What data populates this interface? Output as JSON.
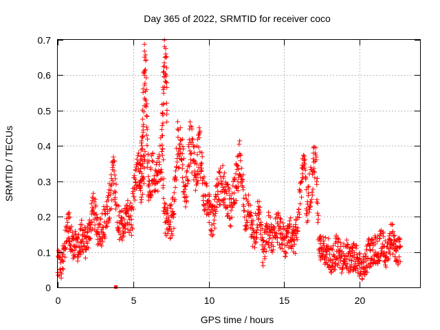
{
  "chart_data": {
    "type": "scatter",
    "title": "Day 365 of 2022, SRMTID for receiver coco",
    "xlabel": "GPS time / hours",
    "ylabel": "SRMTID / TECUs",
    "xlim": [
      0,
      24
    ],
    "ylim": [
      0,
      0.7
    ],
    "xticks": [
      0,
      5,
      10,
      15,
      20
    ],
    "yticks": [
      0,
      0.1,
      0.2,
      0.3,
      0.4,
      0.5,
      0.6,
      0.7
    ],
    "xtick_labels": [
      "0",
      "5",
      "10",
      "15",
      "20"
    ],
    "ytick_labels": [
      "0",
      "0.1",
      "0.2",
      "0.3",
      "0.4",
      "0.5",
      "0.6",
      "0.7"
    ],
    "grid": true,
    "marker": "plus",
    "color": "#ff0000",
    "outlier": {
      "x": 3.85,
      "y": 0.0
    },
    "series": [
      {
        "name": "SRMTID",
        "segments": [
          [
            0.0,
            0.07,
            0.3,
            0.06,
            0.5,
            0.13,
            0.7,
            0.18,
            1.0,
            0.12,
            1.3,
            0.11,
            1.6,
            0.15,
            1.9,
            0.12,
            2.1,
            0.17,
            2.4,
            0.23,
            2.7,
            0.13,
            3.0,
            0.18,
            3.3,
            0.2,
            3.5,
            0.27,
            3.7,
            0.32,
            4.0,
            0.19,
            4.3,
            0.17,
            4.6,
            0.2,
            4.9,
            0.19,
            5.1,
            0.3,
            5.3,
            0.33,
            5.6,
            0.28,
            5.8,
            0.42
          ],
          [
            5.45,
            0.28,
            5.6,
            0.4,
            5.75,
            0.62,
            5.85,
            0.55,
            6.0,
            0.3
          ],
          [
            6.0,
            0.3,
            6.4,
            0.33,
            6.6,
            0.32,
            6.9,
            0.38,
            7.1,
            0.19,
            7.4,
            0.18,
            7.7,
            0.21,
            7.9,
            0.41,
            8.2,
            0.39,
            8.5,
            0.25,
            8.8,
            0.43,
            9.1,
            0.3,
            9.4,
            0.4,
            9.7,
            0.27,
            10.0,
            0.22,
            10.3,
            0.18,
            10.6,
            0.27,
            10.9,
            0.3,
            11.2,
            0.25,
            11.5,
            0.21,
            11.8,
            0.3,
            12.1,
            0.37,
            12.4,
            0.21,
            12.7,
            0.22,
            13.0,
            0.13,
            13.3,
            0.22,
            13.6,
            0.09,
            13.9,
            0.17,
            14.2,
            0.14,
            14.5,
            0.18,
            14.8,
            0.15,
            15.1,
            0.12,
            15.4,
            0.16,
            15.7,
            0.13,
            16.0,
            0.24,
            16.3,
            0.36,
            16.5,
            0.22,
            16.8,
            0.3,
            17.1,
            0.38,
            17.3,
            0.13,
            17.6,
            0.1,
            17.9,
            0.1,
            18.2,
            0.07,
            18.5,
            0.11,
            18.8,
            0.08,
            19.1,
            0.1,
            19.4,
            0.07,
            19.7,
            0.09,
            20.0,
            0.06,
            20.3,
            0.05,
            20.6,
            0.1,
            20.9,
            0.1,
            21.2,
            0.11,
            21.5,
            0.12,
            21.8,
            0.09,
            22.1,
            0.14,
            22.4,
            0.11,
            22.7,
            0.1
          ],
          [
            6.9,
            0.45,
            7.05,
            0.62,
            7.15,
            0.68,
            7.25,
            0.5
          ]
        ]
      }
    ]
  }
}
